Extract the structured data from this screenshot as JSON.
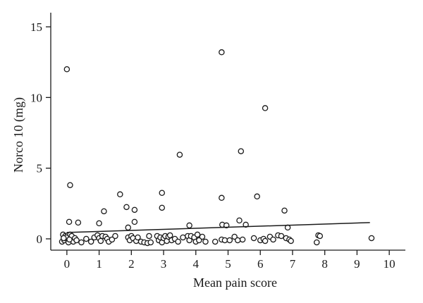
{
  "chart_data": {
    "type": "scatter",
    "xlabel": "Mean pain score",
    "ylabel": "Norco 10 (mg)",
    "xlim": [
      -0.5,
      10.5
    ],
    "ylim": [
      -0.8,
      16
    ],
    "xticks": [
      0,
      1,
      2,
      3,
      4,
      5,
      6,
      7,
      8,
      9,
      10
    ],
    "yticks": [
      0,
      5,
      10,
      15
    ],
    "grid": false,
    "points": [
      [
        0,
        12
      ],
      [
        0.1,
        3.8
      ],
      [
        0.07,
        1.2
      ],
      [
        0.35,
        1.15
      ],
      [
        -0.12,
        0.3
      ],
      [
        -0.05,
        0.2
      ],
      [
        0.03,
        0.25
      ],
      [
        0.1,
        0.3
      ],
      [
        0.18,
        0.1
      ],
      [
        -0.15,
        -0.2
      ],
      [
        -0.08,
        -0.1
      ],
      [
        0,
        0
      ],
      [
        0.05,
        -0.25
      ],
      [
        0.12,
        0.05
      ],
      [
        0.2,
        -0.2
      ],
      [
        -0.02,
        0.1
      ],
      [
        0.15,
        0.2
      ],
      [
        0.25,
        0.05
      ],
      [
        0.08,
        -0.05
      ],
      [
        -0.1,
        0.05
      ],
      [
        0.3,
        -0.1
      ],
      [
        0.45,
        -0.25
      ],
      [
        0.6,
        0.0
      ],
      [
        0.75,
        -0.2
      ],
      [
        0.85,
        0.1
      ],
      [
        0.95,
        0.25
      ],
      [
        1.0,
        0.05
      ],
      [
        1.05,
        -0.15
      ],
      [
        1.1,
        0.2
      ],
      [
        1.2,
        0.15
      ],
      [
        1.25,
        0.0
      ],
      [
        1.3,
        -0.2
      ],
      [
        1.4,
        -0.05
      ],
      [
        1.5,
        0.2
      ],
      [
        1.0,
        1.1
      ],
      [
        1.15,
        1.95
      ],
      [
        1.65,
        3.15
      ],
      [
        1.85,
        2.25
      ],
      [
        1.9,
        0.8
      ],
      [
        2.1,
        2.05
      ],
      [
        2.1,
        1.2
      ],
      [
        1.9,
        0.1
      ],
      [
        1.95,
        -0.1
      ],
      [
        2.0,
        0.2
      ],
      [
        2.05,
        0.05
      ],
      [
        2.15,
        -0.15
      ],
      [
        2.2,
        0.1
      ],
      [
        2.3,
        -0.2
      ],
      [
        2.4,
        -0.25
      ],
      [
        2.5,
        -0.3
      ],
      [
        2.6,
        -0.25
      ],
      [
        2.55,
        0.2
      ],
      [
        2.8,
        0.2
      ],
      [
        2.85,
        -0.1
      ],
      [
        2.9,
        0.1
      ],
      [
        2.95,
        -0.25
      ],
      [
        3.0,
        0.05
      ],
      [
        3.05,
        0.2
      ],
      [
        3.1,
        -0.15
      ],
      [
        3.15,
        0.15
      ],
      [
        3.2,
        0.25
      ],
      [
        3.25,
        -0.1
      ],
      [
        3.35,
        0.0
      ],
      [
        3.45,
        -0.2
      ],
      [
        3.6,
        0.1
      ],
      [
        3.75,
        0.2
      ],
      [
        3.8,
        -0.1
      ],
      [
        3.85,
        0.2
      ],
      [
        3.95,
        0.1
      ],
      [
        4.0,
        -0.2
      ],
      [
        4.05,
        0.3
      ],
      [
        4.1,
        -0.1
      ],
      [
        4.2,
        0.15
      ],
      [
        4.3,
        -0.2
      ],
      [
        2.95,
        3.25
      ],
      [
        2.95,
        2.2
      ],
      [
        3.5,
        5.95
      ],
      [
        3.8,
        0.95
      ],
      [
        4.8,
        13.2
      ],
      [
        4.8,
        2.9
      ],
      [
        4.82,
        1.0
      ],
      [
        4.95,
        0.95
      ],
      [
        5.4,
        6.2
      ],
      [
        5.35,
        1.3
      ],
      [
        5.55,
        1.0
      ],
      [
        5.9,
        3.0
      ],
      [
        6.15,
        9.25
      ],
      [
        4.6,
        -0.2
      ],
      [
        4.8,
        -0.05
      ],
      [
        4.9,
        -0.1
      ],
      [
        5.05,
        -0.1
      ],
      [
        5.2,
        0.15
      ],
      [
        5.3,
        -0.1
      ],
      [
        5.45,
        -0.05
      ],
      [
        5.8,
        0.05
      ],
      [
        6.0,
        -0.1
      ],
      [
        6.1,
        0.0
      ],
      [
        6.15,
        -0.15
      ],
      [
        6.3,
        0.15
      ],
      [
        6.4,
        -0.05
      ],
      [
        6.55,
        0.25
      ],
      [
        6.65,
        0.2
      ],
      [
        6.75,
        2.0
      ],
      [
        6.85,
        0.8
      ],
      [
        6.8,
        0.05
      ],
      [
        6.9,
        -0.05
      ],
      [
        6.95,
        -0.15
      ],
      [
        7.8,
        0.25
      ],
      [
        7.85,
        0.2
      ],
      [
        7.75,
        -0.25
      ],
      [
        9.45,
        0.05
      ]
    ],
    "trendline": {
      "x": [
        0,
        9.4
      ],
      "y": [
        0.45,
        1.15
      ]
    }
  }
}
